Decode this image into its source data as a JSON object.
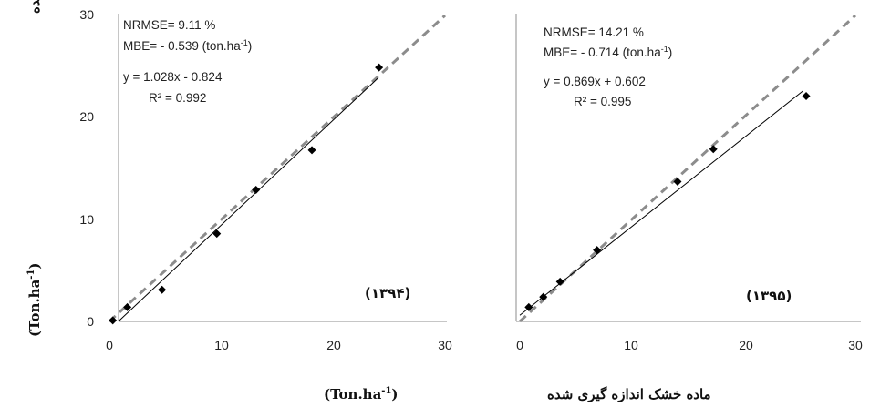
{
  "chart_data": [
    {
      "type": "scatter",
      "year_label": "(۱۳۹۴)",
      "xlim": [
        0,
        30
      ],
      "ylim": [
        0,
        30
      ],
      "x_ticks": [
        "0",
        "10",
        "20",
        "30"
      ],
      "y_ticks": [
        "0",
        "10",
        "20",
        "30"
      ],
      "points": [
        {
          "x": 0.3,
          "y": 0.1
        },
        {
          "x": 1.6,
          "y": 1.4
        },
        {
          "x": 4.7,
          "y": 3.1
        },
        {
          "x": 9.6,
          "y": 8.6
        },
        {
          "x": 13.1,
          "y": 12.9
        },
        {
          "x": 18.1,
          "y": 16.8
        },
        {
          "x": 24.1,
          "y": 24.9
        }
      ],
      "fit": {
        "slope": 1.028,
        "intercept": -0.824,
        "x_start": 0.8,
        "x_end": 24.0
      },
      "identity_line": true,
      "annotations": [
        "NRMSE= 9.11 %",
        "MBE= - 0.539 (ton.ha",
        "-1",
        ")",
        "y = 1.028x - 0.824",
        "R² = 0.992"
      ]
    },
    {
      "type": "scatter",
      "year_label": "(۱۳۹۵)",
      "xlim": [
        0,
        30
      ],
      "ylim": [
        0,
        30
      ],
      "x_ticks": [
        "0",
        "10",
        "20",
        "30"
      ],
      "points": [
        {
          "x": 0.8,
          "y": 1.4
        },
        {
          "x": 2.1,
          "y": 2.4
        },
        {
          "x": 3.6,
          "y": 3.9
        },
        {
          "x": 6.9,
          "y": 7.0
        },
        {
          "x": 14.1,
          "y": 13.7
        },
        {
          "x": 17.3,
          "y": 16.9
        },
        {
          "x": 25.6,
          "y": 22.1
        }
      ],
      "fit": {
        "slope": 0.869,
        "intercept": 0.602,
        "x_start": 0.0,
        "x_end": 25.3
      },
      "identity_line": true,
      "annotations": [
        "NRMSE= 14.21 %",
        "MBE= - 0.714 (ton.ha",
        "-1",
        ")",
        "y = 0.869x + 0.602",
        "R² = 0.995"
      ]
    }
  ],
  "x_axis_label": {
    "text": "ماده خشک اندازه گیری شده",
    "unit": "(Ton.ha",
    "exp": "-1",
    "close": ")"
  },
  "y_axis_label": {
    "text": "ماده خشک شبیه سازی شده",
    "unit": "(Ton.ha",
    "exp": "-1",
    "close": ")"
  },
  "colors": {
    "points": "#000000",
    "fit_line": "#000000",
    "identity_line": "#8c8c8c",
    "axis": "#8c8c8c"
  }
}
